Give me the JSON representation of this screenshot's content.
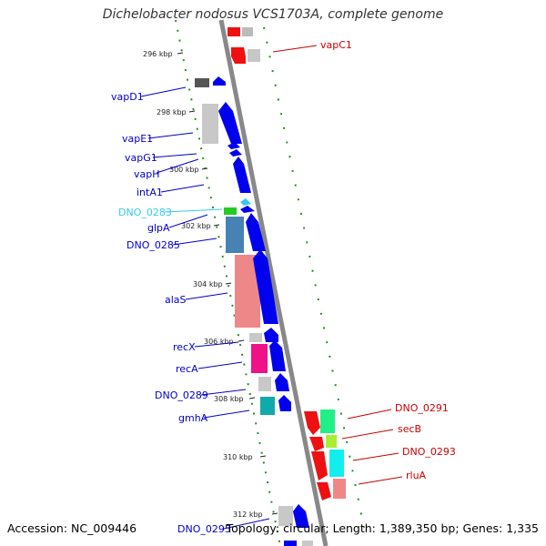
{
  "title": "Dichelobacter nodosus VCS1703A, complete genome",
  "footer": {
    "accession": "Accession: NC_009446",
    "summary": "Topology: circular; Length: 1,389,350 bp; Genes: 1,335"
  },
  "ticks": [
    {
      "label": "296 kbp"
    },
    {
      "label": "298 kbp"
    },
    {
      "label": "300 kbp"
    },
    {
      "label": "302 kbp"
    },
    {
      "label": "304 kbp"
    },
    {
      "label": "306 kbp"
    },
    {
      "label": "308 kbp"
    },
    {
      "label": "310 kbp"
    },
    {
      "label": "312 kbp"
    }
  ],
  "genes_left": [
    {
      "name": "vapD1",
      "color": "#0000cc"
    },
    {
      "name": "vapE1",
      "color": "#0000cc"
    },
    {
      "name": "vapG1",
      "color": "#0000cc"
    },
    {
      "name": "vapH",
      "color": "#0000cc"
    },
    {
      "name": "intA1",
      "color": "#0000cc"
    },
    {
      "name": "DNO_0283",
      "color": "#33ccee"
    },
    {
      "name": "glpA",
      "color": "#0000cc"
    },
    {
      "name": "DNO_0285",
      "color": "#0000cc"
    },
    {
      "name": "alaS",
      "color": "#0000cc"
    },
    {
      "name": "recX",
      "color": "#0000cc"
    },
    {
      "name": "recA",
      "color": "#0000cc"
    },
    {
      "name": "DNO_0289",
      "color": "#0000cc"
    },
    {
      "name": "gmhA",
      "color": "#0000cc"
    },
    {
      "name": "DNO_0295",
      "color": "#0000cc"
    }
  ],
  "genes_right": [
    {
      "name": "vapC1",
      "color": "#cc0000"
    },
    {
      "name": "DNO_0291",
      "color": "#cc0000"
    },
    {
      "name": "secB",
      "color": "#cc0000"
    },
    {
      "name": "DNO_0293",
      "color": "#cc0000"
    },
    {
      "name": "rluA",
      "color": "#cc0000"
    }
  ]
}
